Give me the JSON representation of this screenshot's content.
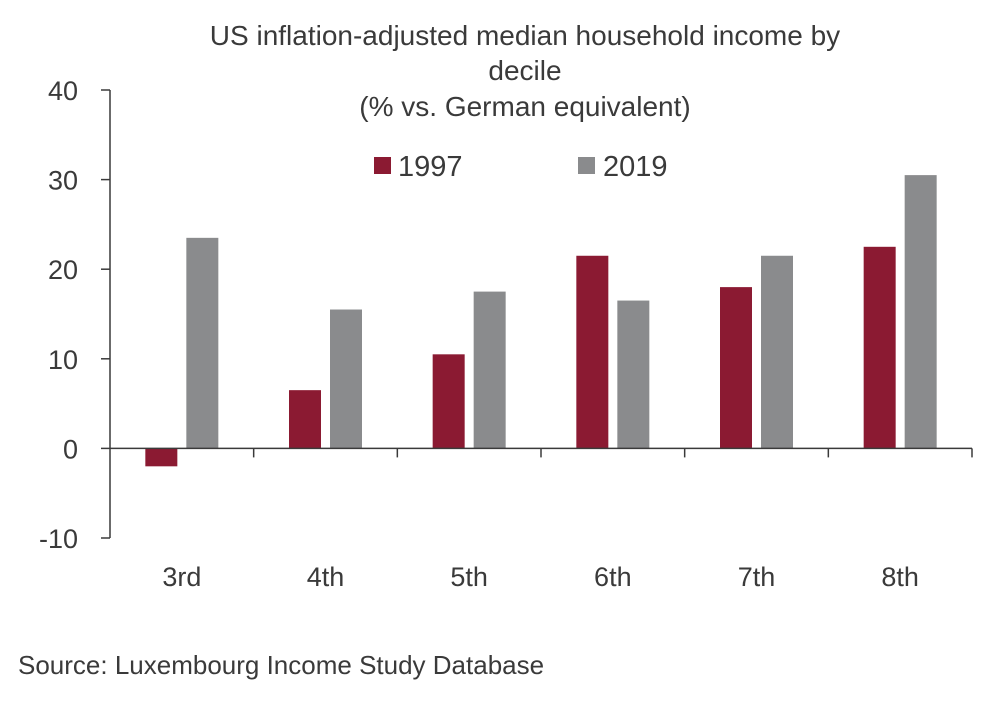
{
  "chart_data": {
    "type": "bar",
    "title_lines": [
      "US inflation-adjusted median household income by",
      "decile",
      "(% vs. German equivalent)"
    ],
    "categories": [
      "3rd",
      "4th",
      "5th",
      "6th",
      "7th",
      "8th"
    ],
    "series": [
      {
        "name": "1997",
        "color": "#8b1a32",
        "values": [
          -2,
          6.5,
          10.5,
          21.5,
          18,
          22.5
        ]
      },
      {
        "name": "2019",
        "color": "#8a8b8d",
        "values": [
          23.5,
          15.5,
          17.5,
          16.5,
          21.5,
          30.5
        ]
      }
    ],
    "yticks": [
      "40",
      "30",
      "20",
      "10",
      "0",
      "-10"
    ],
    "ylim": [
      -10,
      40
    ],
    "xlabel": "",
    "ylabel": "",
    "legend_position": "top-center",
    "grid": false
  },
  "source": "Source: Luxembourg Income Study Database"
}
